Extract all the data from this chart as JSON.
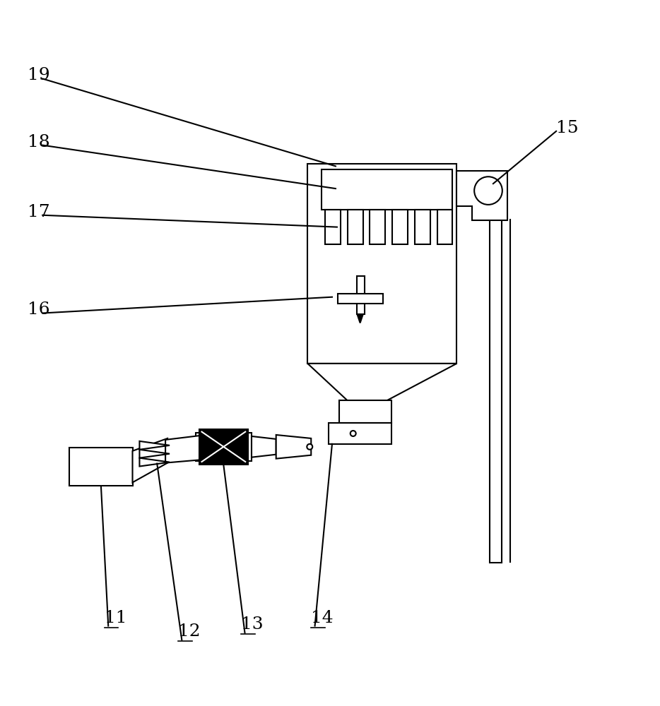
{
  "bg_color": "#ffffff",
  "lw": 1.5,
  "thin_lw": 1.0
}
